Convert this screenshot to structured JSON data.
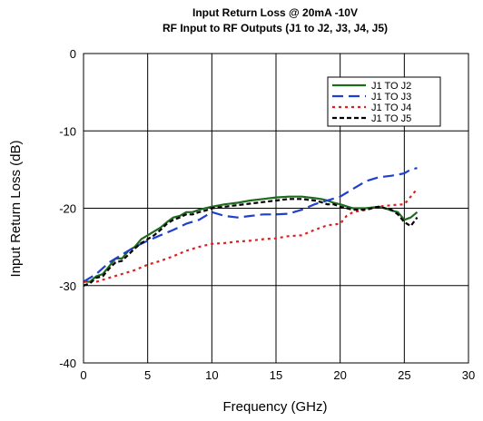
{
  "chart_data": {
    "type": "line",
    "title": "Input Return Loss @ 20mA -10V",
    "subtitle": "RF Input to RF Outputs (J1 to J2, J3, J4, J5)",
    "xlabel": "Frequency (GHz)",
    "ylabel": "Input Return Loss (dB)",
    "xlim": [
      0,
      30
    ],
    "ylim": [
      -40,
      0
    ],
    "xticks": [
      "0",
      "5",
      "10",
      "15",
      "20",
      "25",
      "30"
    ],
    "yticks": [
      "0",
      "-10",
      "-20",
      "-30",
      "-40"
    ],
    "grid": true,
    "legend_position": "top-right",
    "series": [
      {
        "name": "J1 TO J2",
        "color": "#1e6b1e",
        "dash": "solid",
        "x": [
          0,
          0.5,
          1,
          1.5,
          2,
          2.5,
          3,
          3.5,
          4,
          4.5,
          5,
          5.5,
          6,
          6.5,
          7,
          7.5,
          8,
          8.5,
          9,
          9.5,
          10,
          11,
          12,
          13,
          14,
          15,
          16,
          17,
          18,
          18.5,
          19,
          19.5,
          20,
          21,
          22,
          23,
          23.5,
          24,
          24.5,
          25,
          25.5,
          26
        ],
        "y": [
          -29.5,
          -29.5,
          -28.8,
          -28.5,
          -27.5,
          -26.5,
          -26.5,
          -25.5,
          -25,
          -24,
          -23.5,
          -23,
          -22.5,
          -21.8,
          -21.2,
          -21,
          -20.5,
          -20.5,
          -20.2,
          -20,
          -19.8,
          -19.5,
          -19.3,
          -19,
          -18.8,
          -18.6,
          -18.5,
          -18.5,
          -18.7,
          -18.8,
          -19,
          -19.3,
          -19.5,
          -20,
          -20,
          -19.8,
          -20,
          -20.3,
          -20.5,
          -21.5,
          -21.2,
          -20.5
        ]
      },
      {
        "name": "J1 TO J3",
        "color": "#1f3fcf",
        "dash": "long",
        "x": [
          0,
          1,
          2,
          3,
          4,
          5,
          6,
          7,
          8,
          9,
          10,
          11,
          12,
          13,
          14,
          15,
          16,
          17,
          18,
          19,
          20,
          20.5,
          21,
          22,
          23,
          24,
          25,
          25.5,
          26
        ],
        "y": [
          -29.5,
          -28.5,
          -27,
          -26,
          -25,
          -24.2,
          -23.5,
          -22.8,
          -22,
          -21.5,
          -20.5,
          -21,
          -21.2,
          -21,
          -20.8,
          -20.8,
          -20.7,
          -20.2,
          -19.5,
          -19,
          -18.5,
          -18,
          -17.5,
          -16.5,
          -16,
          -15.8,
          -15.5,
          -15,
          -14.8
        ]
      },
      {
        "name": "J1 TO J4",
        "color": "#e02020",
        "dash": "dot",
        "x": [
          0,
          1,
          2,
          3,
          4,
          5,
          6,
          7,
          8,
          9,
          10,
          11,
          12,
          13,
          14,
          15,
          16,
          17,
          18,
          19,
          20,
          20.5,
          21,
          22,
          23,
          24,
          25,
          25.5,
          26
        ],
        "y": [
          -29.5,
          -29.5,
          -29,
          -28.5,
          -28,
          -27.3,
          -26.8,
          -26.2,
          -25.5,
          -25,
          -24.6,
          -24.5,
          -24.3,
          -24.2,
          -24,
          -23.9,
          -23.6,
          -23.5,
          -22.8,
          -22.2,
          -22,
          -21,
          -20.5,
          -20.2,
          -19.8,
          -19.6,
          -19.5,
          -18.5,
          -17.5
        ]
      },
      {
        "name": "J1 TO J5",
        "color": "#000000",
        "dash": "short",
        "x": [
          0,
          0.5,
          1,
          1.5,
          2,
          2.5,
          3,
          3.5,
          4,
          4.5,
          5,
          5.5,
          6,
          6.5,
          7,
          7.5,
          8,
          8.5,
          9,
          9.5,
          10,
          11,
          12,
          13,
          14,
          15,
          16,
          17,
          18,
          18.5,
          19,
          19.5,
          20,
          21,
          22,
          23,
          24,
          24.5,
          25,
          25.5,
          26
        ],
        "y": [
          -30,
          -29.7,
          -29,
          -28.8,
          -27.8,
          -27,
          -26.8,
          -26,
          -25.2,
          -24.5,
          -24,
          -23.5,
          -22.8,
          -22,
          -21.5,
          -21.2,
          -20.8,
          -20.8,
          -20.5,
          -20.3,
          -20,
          -19.8,
          -19.6,
          -19.4,
          -19.2,
          -19,
          -18.8,
          -18.8,
          -19,
          -19.2,
          -19.5,
          -19.5,
          -19.8,
          -20.2,
          -20.2,
          -19.8,
          -20.2,
          -20.8,
          -21.8,
          -22.3,
          -21.2
        ]
      }
    ]
  }
}
